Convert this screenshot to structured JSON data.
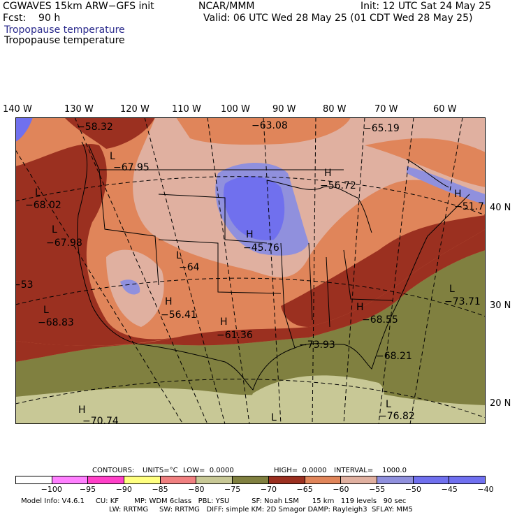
{
  "header": {
    "model": "CGWAVES 15km ARW−GFS init",
    "org": "NCAR/MMM",
    "init": "Init: 12 UTC Sat 24 May 25",
    "fcst": "Fcst:    90 h",
    "valid": "Valid: 06 UTC Wed 28 May 25 (01 CDT Wed 28 May 25)",
    "field_shaded": "Tropopause temperature",
    "field_contour": "Tropopause temperature"
  },
  "lon_labels": [
    "140 W",
    "130 W",
    "120 W",
    "110 W",
    "100 W",
    "90 W",
    "80 W",
    "70 W",
    "60 W"
  ],
  "lat_labels": [
    "40 N",
    "30 N",
    "20 N"
  ],
  "map_labels": {
    "systems": [
      {
        "type": "L",
        "value": "−58.32"
      },
      {
        "type": "L",
        "value": "−67.95"
      },
      {
        "type": "L",
        "value": "−68.02"
      },
      {
        "type": "L",
        "value": "−67.98"
      },
      {
        "type": "L",
        "value": "−64"
      },
      {
        "type": "H",
        "value": "−56.41"
      },
      {
        "type": "H",
        "value": "−61.36"
      },
      {
        "type": "L",
        "value": "−68.83"
      },
      {
        "type": "H",
        "value": "−70.74"
      },
      {
        "type": "H",
        "value": "−45.76"
      },
      {
        "type": "H",
        "value": "−56.72"
      },
      {
        "type": "",
        "value": "−63.08"
      },
      {
        "type": "",
        "value": "−65.19"
      },
      {
        "type": "H",
        "value": "−51.7"
      },
      {
        "type": "L",
        "value": "−73.71"
      },
      {
        "type": "H",
        "value": "−68.55"
      },
      {
        "type": "",
        "value": "−68.21"
      },
      {
        "type": "L",
        "value": "−76.82"
      },
      {
        "type": "L",
        "value": ""
      },
      {
        "type": "",
        "value": "−53"
      },
      {
        "type": "",
        "value": "−73.93"
      }
    ]
  },
  "contours": {
    "label": "CONTOURS:",
    "units": "UNITS=°C",
    "low": "LOW=  0.0000",
    "high": "HIGH=  0.0000",
    "interval": "INTERVAL=    1000.0"
  },
  "colorbar": {
    "colors": [
      "#ffffff",
      "#ff80ff",
      "#ff40c8",
      "#ffff80",
      "#f08080",
      "#c8c896",
      "#808040",
      "#9b3020",
      "#e0855a",
      "#e0b0a0",
      "#9090dd",
      "#7070ee",
      "#7070f0"
    ],
    "ticks": [
      "−100",
      "−95",
      "−90",
      "−85",
      "−80",
      "−75",
      "−70",
      "−65",
      "−60",
      "−55",
      "−50",
      "−45",
      "−40",
      "°C"
    ]
  },
  "footer": {
    "line1": "Model Info: V4.6.1     CU: KF       MP: WDM 6class   PBL: YSU          SF: Noah LSM      15 km   119 levels   90 sec",
    "line2": "LW: RRTMG     SW: RRTMG   DIFF: simple KM: 2D Smagor DAMP: Rayleigh3  SFLAY: MM5"
  }
}
